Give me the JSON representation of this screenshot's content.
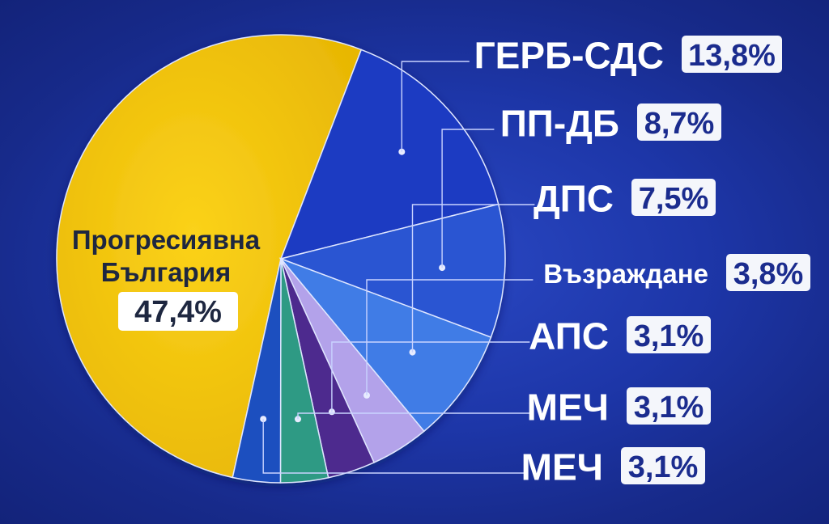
{
  "chart_data": {
    "type": "pie",
    "slices": [
      {
        "label": "Прогресиявна България",
        "label_lines": [
          "Прогресиявна",
          "България"
        ],
        "value": 47.4,
        "display": "47,4%",
        "color": "#f2c40c"
      },
      {
        "label": "ГЕРБ-СДС",
        "value": 13.8,
        "display": "13,8%",
        "color": "#1c3bc2"
      },
      {
        "label": "ПП-ДБ",
        "value": 8.7,
        "display": "8,7%",
        "color": "#2a55d2"
      },
      {
        "label": "ДПС",
        "value": 7.5,
        "display": "7,5%",
        "color": "#3f7ce6"
      },
      {
        "label": "Възраждане",
        "value": 3.8,
        "display": "3,8%",
        "color": "#b3a2ea"
      },
      {
        "label": "АПС",
        "value": 3.1,
        "display": "3,1%",
        "color": "#4d2a8e"
      },
      {
        "label": "МЕЧ",
        "value": 3.1,
        "display": "3,1%",
        "color": "#2e9a84"
      },
      {
        "label": "МЕЧ",
        "value": 3.1,
        "display": "3,1%",
        "color": "#1f4fbf"
      }
    ],
    "start_angle": "top, clockwise",
    "legend": "right, leader lines"
  }
}
